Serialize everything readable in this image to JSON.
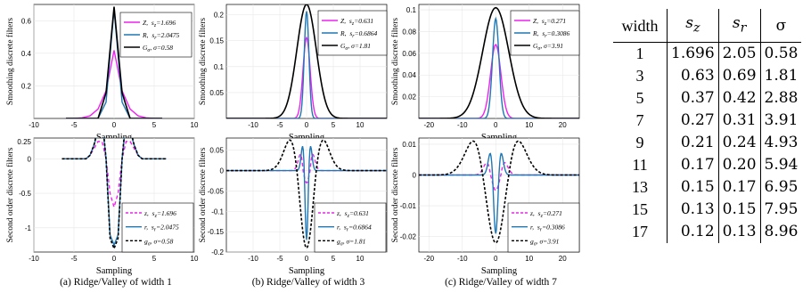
{
  "captions": [
    "(a) Ridge/Valley of width 1",
    "(b) Ridge/Valley of width 3",
    "(c) Ridge/Valley of width 7"
  ],
  "table": {
    "headers": [
      "width",
      "s_z",
      "s_r",
      "σ"
    ],
    "header_main": [
      "width",
      "s",
      "s",
      "σ"
    ],
    "header_sub": [
      "",
      "z",
      "r",
      ""
    ],
    "rows": [
      [
        "1",
        "1.696",
        "2.05",
        "0.58"
      ],
      [
        "3",
        "0.63",
        "0.69",
        "1.81"
      ],
      [
        "5",
        "0.37",
        "0.42",
        "2.88"
      ],
      [
        "7",
        "0.27",
        "0.31",
        "3.91"
      ],
      [
        "9",
        "0.21",
        "0.24",
        "4.93"
      ],
      [
        "11",
        "0.17",
        "0.20",
        "5.94"
      ],
      [
        "13",
        "0.15",
        "0.17",
        "6.95"
      ],
      [
        "15",
        "0.13",
        "0.15",
        "7.95"
      ],
      [
        "17",
        "0.12",
        "0.13",
        "8.96"
      ]
    ]
  },
  "colors": {
    "z": "#ee22ee",
    "r": "#1f77b4",
    "g": "#000000"
  },
  "chart_data": [
    {
      "type": "line",
      "panel": "a-top",
      "xlabel": "Sampling",
      "ylabel": "Smoothing discrete filters",
      "xlim": [
        -10,
        10
      ],
      "ylim": [
        0,
        0.7
      ],
      "xticks": [
        -10,
        -5,
        0,
        5,
        10
      ],
      "yticks": [
        0.2,
        0.4,
        0.6
      ],
      "series": [
        {
          "name": "Z, s_z=1.696",
          "kind": "Z",
          "s": 1.696,
          "values": [
            0.0,
            0.0005,
            0.0035,
            0.0159,
            0.0577,
            0.1696,
            0.4183,
            0.1696,
            0.0577,
            0.0159,
            0.0035,
            0.0005,
            0.0
          ],
          "x": [
            -6,
            -5,
            -4,
            -3,
            -2,
            -1,
            0,
            1,
            2,
            3,
            4,
            5,
            6
          ]
        },
        {
          "name": "R, s_r=2.0475",
          "kind": "R",
          "s": 2.0475,
          "values": [
            0.0,
            0.0,
            0.0,
            0.0,
            0.0,
            0.1,
            0.6734,
            0.1,
            0.0,
            0.0,
            0.0,
            0.0,
            0.0
          ],
          "x": [
            -6,
            -5,
            -4,
            -3,
            -2,
            -1,
            0,
            1,
            2,
            3,
            4,
            5,
            6
          ]
        },
        {
          "name": "G_σ, σ=0.58",
          "kind": "G",
          "s": 0.58,
          "values": [
            0.0,
            0.0,
            0.0,
            0.0,
            0.0,
            0.1572,
            0.6856,
            0.1572,
            0.0,
            0.0,
            0.0,
            0.0,
            0.0
          ],
          "x": [
            -6,
            -5,
            -4,
            -3,
            -2,
            -1,
            0,
            1,
            2,
            3,
            4,
            5,
            6
          ]
        }
      ],
      "legend": {
        "lines": [
          [
            "Z,",
            "z",
            "=1.696"
          ],
          [
            "R,",
            "r",
            "=2.0475"
          ],
          [
            "G",
            "σ",
            ", σ=0.58"
          ]
        ]
      }
    },
    {
      "type": "line",
      "panel": "b-top",
      "xlabel": "Sampling",
      "ylabel": "Smoothing discrete filters",
      "xlim": [
        -15,
        15
      ],
      "ylim": [
        0,
        0.22
      ],
      "xticks": [
        -10,
        -5,
        0,
        5,
        10
      ],
      "yticks": [
        0.05,
        0.1,
        0.15,
        0.2
      ],
      "series": [
        {
          "name": "Z, s_z=0.631",
          "kind": "Z",
          "s": 0.631,
          "peak": 0.156
        },
        {
          "name": "R, s_r=0.6864",
          "kind": "R",
          "s": 0.6864,
          "peak": 0.207
        },
        {
          "name": "G_σ, σ=1.81",
          "kind": "G",
          "s": 1.81,
          "peak": 0.22
        }
      ],
      "legend": {
        "lines": [
          [
            "Z,",
            "z",
            "=0.631"
          ],
          [
            "R,",
            "r",
            "=0.6864"
          ],
          [
            "G",
            "σ",
            ", σ=1.81"
          ]
        ]
      }
    },
    {
      "type": "line",
      "panel": "c-top",
      "xlabel": "Sampling",
      "ylabel": "Smoothing discrete filters",
      "xlim": [
        -23,
        25
      ],
      "ylim": [
        0,
        0.105
      ],
      "xticks": [
        -20,
        -10,
        0,
        10,
        20
      ],
      "yticks": [
        0.02,
        0.04,
        0.06,
        0.08,
        0.1
      ],
      "series": [
        {
          "name": "Z, s_z=0.271",
          "kind": "Z",
          "s": 0.271,
          "peak": 0.068
        },
        {
          "name": "R, s_r=0.3086",
          "kind": "R",
          "s": 0.3086,
          "peak": 0.092
        },
        {
          "name": "G_σ, σ=3.91",
          "kind": "G",
          "s": 3.91,
          "peak": 0.102
        }
      ],
      "legend": {
        "lines": [
          [
            "Z,",
            "z",
            "=0.271"
          ],
          [
            "R,",
            "r",
            "=0.3086"
          ],
          [
            "G",
            "σ",
            ", σ=3.91"
          ]
        ]
      }
    },
    {
      "type": "line",
      "panel": "a-bottom",
      "xlabel": "Sampling",
      "ylabel": "Second order discrete filters",
      "xlim": [
        -10,
        10
      ],
      "ylim": [
        -1.35,
        0.3
      ],
      "xticks": [
        -10,
        -5,
        0,
        5,
        10
      ],
      "yticks": [
        -1,
        -0.5,
        0,
        0.25
      ],
      "series": [
        {
          "name": "z, s_z=1.696",
          "kind": "z",
          "s": 1.696,
          "values": [
            0.0,
            0.0,
            0.0,
            0.0,
            0.0,
            0.0,
            0.0,
            0.05,
            0.15,
            0.25,
            0.25,
            0.0,
            -0.5,
            -0.7,
            -0.5,
            0.0,
            0.25,
            0.25,
            0.15,
            0.05,
            0.0,
            0.0,
            0.0,
            0.0,
            0.0,
            0.0,
            0.0
          ]
        },
        {
          "name": "r, s_r=2.0475",
          "kind": "r",
          "s": 2.0475,
          "values": [
            0.0,
            0.0,
            0.0,
            0.0,
            0.0,
            0.0,
            0.0,
            0.05,
            0.2,
            0.4,
            0.55,
            0.0,
            -1.1,
            -1.25,
            -1.1,
            0.0,
            0.55,
            0.4,
            0.2,
            0.05,
            0.0,
            0.0,
            0.0,
            0.0,
            0.0,
            0.0,
            0.0
          ]
        },
        {
          "name": "g_σ, σ=0.58",
          "kind": "g",
          "s": 0.58,
          "values": [
            0.0,
            0.0,
            0.0,
            0.0,
            0.0,
            0.0,
            0.0,
            0.05,
            0.2,
            0.45,
            0.62,
            0.0,
            -1.15,
            -1.3,
            -1.15,
            0.0,
            0.62,
            0.45,
            0.2,
            0.05,
            0.0,
            0.0,
            0.0,
            0.0,
            0.0,
            0.0,
            0.0
          ]
        }
      ],
      "legend": {
        "lines": [
          [
            "z,",
            "z",
            "=1.696"
          ],
          [
            "r,",
            "r",
            "=2.0475"
          ],
          [
            "g",
            "σ",
            ", σ=0.58"
          ]
        ]
      }
    },
    {
      "type": "line",
      "panel": "b-bottom",
      "xlabel": "Sampling",
      "ylabel": "Second order discrete filters",
      "xlim": [
        -15,
        15
      ],
      "ylim": [
        -0.2,
        0.08
      ],
      "xticks": [
        -10,
        -5,
        0,
        5,
        10
      ],
      "yticks": [
        -0.2,
        -0.15,
        -0.1,
        -0.05,
        0,
        0.05
      ],
      "series": [
        {
          "name": "z, s_z=0.631",
          "kind": "z",
          "s": 0.631,
          "peak": 0.04,
          "trough": -0.03
        },
        {
          "name": "r, s_r=0.6864",
          "kind": "r",
          "s": 0.6864,
          "peak": 0.06,
          "trough": -0.17
        },
        {
          "name": "g_σ, σ=1.81",
          "kind": "g",
          "s": 1.81,
          "peak": 0.075,
          "trough": -0.19
        }
      ],
      "legend": {
        "lines": [
          [
            "z,",
            "z",
            "=0.631"
          ],
          [
            "r,",
            "r",
            "=0.6864"
          ],
          [
            "g",
            "σ",
            ", σ=1.81"
          ]
        ]
      }
    },
    {
      "type": "line",
      "panel": "c-bottom",
      "xlabel": "Sampling",
      "ylabel": "Second order discrete filters",
      "xlim": [
        -23,
        25
      ],
      "ylim": [
        -0.025,
        0.012
      ],
      "xticks": [
        -20,
        -10,
        0,
        10,
        20
      ],
      "yticks": [
        -0.02,
        -0.01,
        0,
        0.01
      ],
      "series": [
        {
          "name": "z, s_z=0.271",
          "kind": "z",
          "s": 0.271,
          "peak": 0.004,
          "trough": -0.005
        },
        {
          "name": "r, s_r=0.3086",
          "kind": "r",
          "s": 0.3086,
          "peak": 0.007,
          "trough": -0.019
        },
        {
          "name": "g_σ, σ=3.91",
          "kind": "g",
          "s": 3.91,
          "peak": 0.011,
          "trough": -0.022
        }
      ],
      "legend": {
        "lines": [
          [
            "z,",
            "z",
            "=0.271"
          ],
          [
            "r,",
            "r",
            "=0.3086"
          ],
          [
            "g",
            "σ",
            ", σ=3.91"
          ]
        ]
      }
    }
  ]
}
